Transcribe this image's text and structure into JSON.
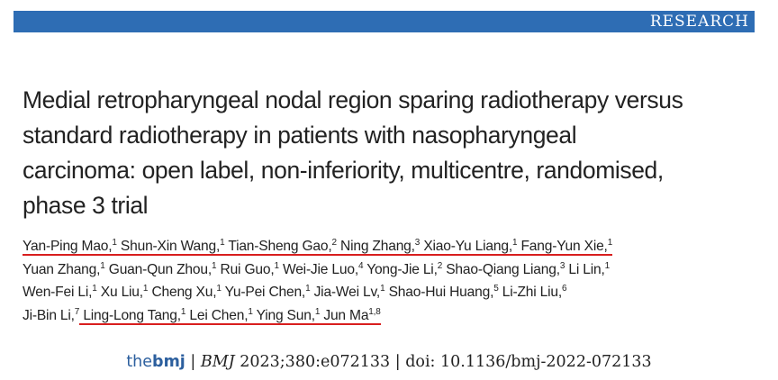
{
  "header": {
    "section": "RESEARCH"
  },
  "title": {
    "lines": [
      "Medial retropharyngeal nodal region sparing radiotherapy versus",
      "standard radiotherapy in patients with nasopharyngeal",
      "carcinoma: open label, non-inferiority, multicentre, randomised,",
      "phase 3 trial"
    ]
  },
  "authors": {
    "lines": [
      [
        {
          "name": "Yan-Ping Mao,",
          "aff": "1"
        },
        {
          "name": "Shun-Xin Wang,",
          "aff": "1"
        },
        {
          "name": "Tian-Sheng Gao,",
          "aff": "2"
        },
        {
          "name": "Ning Zhang,",
          "aff": "3"
        },
        {
          "name": "Xiao-Yu Liang,",
          "aff": "1"
        },
        {
          "name": "Fang-Yun Xie,",
          "aff": "1"
        }
      ],
      [
        {
          "name": "Yuan Zhang,",
          "aff": "1"
        },
        {
          "name": "Guan-Qun Zhou,",
          "aff": "1"
        },
        {
          "name": "Rui Guo,",
          "aff": "1"
        },
        {
          "name": "Wei-Jie Luo,",
          "aff": "4"
        },
        {
          "name": "Yong-Jie Li,",
          "aff": "2"
        },
        {
          "name": "Shao-Qiang Liang,",
          "aff": "3"
        },
        {
          "name": "Li Lin,",
          "aff": "1"
        }
      ],
      [
        {
          "name": "Wen-Fei Li,",
          "aff": "1"
        },
        {
          "name": "Xu Liu,",
          "aff": "1"
        },
        {
          "name": "Cheng Xu,",
          "aff": "1"
        },
        {
          "name": "Yu-Pei Chen,",
          "aff": "1"
        },
        {
          "name": "Jia-Wei Lv,",
          "aff": "1"
        },
        {
          "name": "Shao-Hui Huang,",
          "aff": "5"
        },
        {
          "name": "Li-Zhi Liu,",
          "aff": "6"
        }
      ],
      [
        {
          "name": "Ji-Bin Li,",
          "aff": "7"
        },
        {
          "name": "Ling-Long Tang,",
          "aff": "1"
        },
        {
          "name": "Lei Chen,",
          "aff": "1"
        },
        {
          "name": "Ying Sun,",
          "aff": "1"
        },
        {
          "name": "Jun Ma",
          "aff": "1,8"
        }
      ]
    ]
  },
  "citation": {
    "logo_prefix": "the",
    "logo_name": "bmj",
    "separator": "|",
    "journal": "BMJ",
    "reference": "2023;380:e072133",
    "doi": "doi: 10.1136/bmj-2022-072133"
  }
}
